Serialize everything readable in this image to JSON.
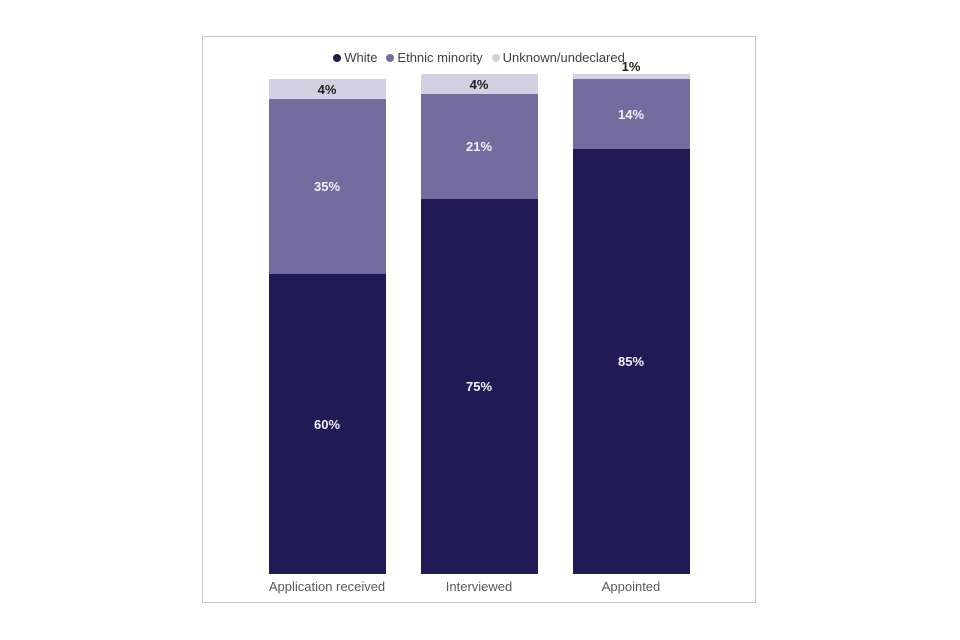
{
  "chart_data": {
    "type": "bar",
    "variant": "stacked-vertical-percent",
    "title": "",
    "categories": [
      "Application received",
      "Interviewed",
      "Appointed"
    ],
    "series": [
      {
        "name": "White",
        "color": "#211a55",
        "label_color": "#f2f1f8",
        "values": [
          60,
          75,
          85
        ]
      },
      {
        "name": "Ethnic minority",
        "color": "#746c9e",
        "label_color": "#f2f1f8",
        "values": [
          35,
          21,
          14
        ]
      },
      {
        "name": "Unknown/undeclared",
        "color": "#d3d1e1",
        "label_color": "#1f1f1f",
        "values": [
          4,
          4,
          1
        ]
      }
    ],
    "value_label_suffix": "%",
    "ylim": [
      0,
      100
    ],
    "legend_position": "top",
    "gridlines": false,
    "y_axis_visible": false,
    "frame_border_color": "#c6c6c6",
    "axis_label_color": "#595959",
    "legend_text_color": "#3f3f3f"
  }
}
